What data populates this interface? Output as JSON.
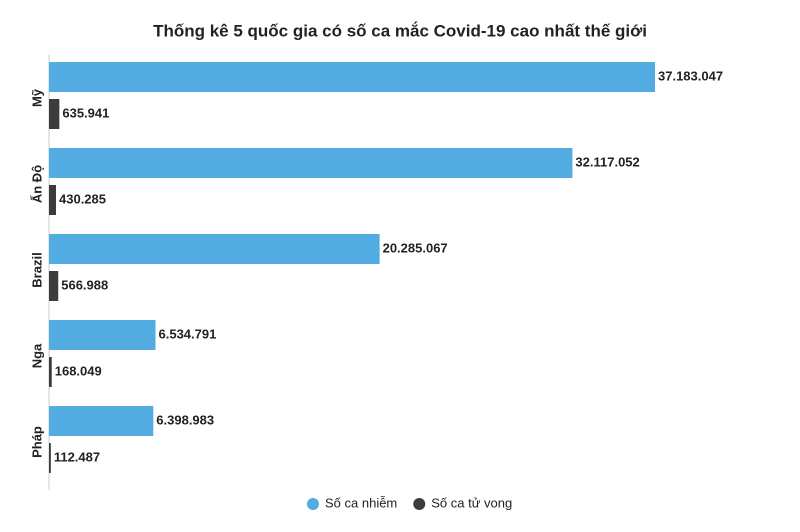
{
  "chart_data": {
    "type": "bar",
    "title": "Thống kê 5 quốc gia có số ca mắc Covid-19 cao nhất thế giới",
    "categories": [
      "Mỹ",
      "Ấn Độ",
      "Brazil",
      "Nga",
      "Pháp"
    ],
    "series": [
      {
        "name": "Số ca nhiễm",
        "color": "#52abe1",
        "values": [
          37183047,
          32117052,
          20285067,
          6534791,
          6398983
        ],
        "value_labels": [
          "37.183.047",
          "32.117.052",
          "20.285.067",
          "6.534.791",
          "6.398.983"
        ]
      },
      {
        "name": "Số ca tử vong",
        "color": "#3c3c3c",
        "values": [
          635941,
          430285,
          566988,
          168049,
          112487
        ],
        "value_labels": [
          "635.941",
          "430.285",
          "566.988",
          "168.049",
          "112.487"
        ]
      }
    ]
  }
}
